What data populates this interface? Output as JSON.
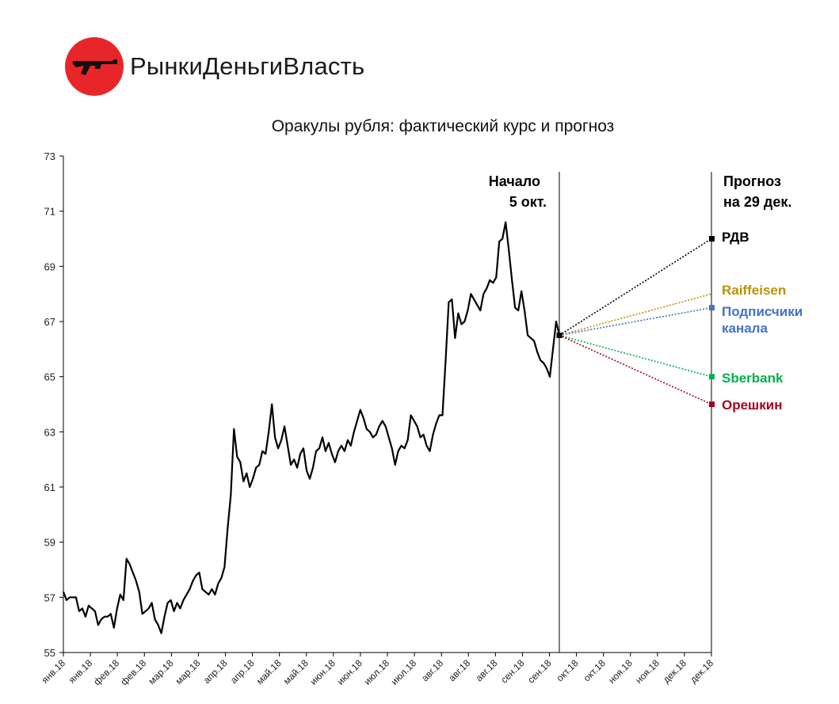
{
  "brand": {
    "name": "РынкиДеньгиВласть"
  },
  "chart_data": {
    "type": "line",
    "title": "Оракулы рубля: фактический курс и прогноз",
    "ylim": [
      55,
      73
    ],
    "y_ticks": [
      55,
      57,
      59,
      61,
      63,
      65,
      67,
      69,
      71,
      73
    ],
    "x_tick_labels": [
      "янв.18",
      "янв.18",
      "фев.18",
      "фев.18",
      "мар.18",
      "мар.18",
      "апр.18",
      "апр.18",
      "май.18",
      "май.18",
      "июн.18",
      "июн.18",
      "июл.18",
      "июл.18",
      "авг.18",
      "авг.18",
      "авг.18",
      "сен.18",
      "сен.18",
      "окт.18",
      "окт.18",
      "ноя.18",
      "ноя.18",
      "дек.18",
      "дек.18"
    ],
    "grid": false,
    "series": [
      {
        "color": "#000000",
        "values": [
          57.2,
          56.9,
          57.0,
          57.0,
          57.0,
          56.5,
          56.6,
          56.3,
          56.7,
          56.6,
          56.5,
          56.0,
          56.2,
          56.3,
          56.3,
          56.4,
          55.9,
          56.6,
          57.1,
          56.9,
          58.4,
          58.2,
          57.9,
          57.6,
          57.2,
          56.4,
          56.5,
          56.6,
          56.8,
          56.2,
          56.0,
          55.7,
          56.3,
          56.8,
          56.9,
          56.5,
          56.8,
          56.6,
          56.9,
          57.1,
          57.3,
          57.6,
          57.8,
          57.9,
          57.3,
          57.2,
          57.1,
          57.3,
          57.1,
          57.5,
          57.7,
          58.1,
          59.5,
          60.7,
          63.1,
          62.1,
          61.9,
          61.2,
          61.5,
          61.0,
          61.3,
          61.7,
          61.8,
          62.3,
          62.2,
          63.0,
          64.0,
          62.8,
          62.4,
          62.7,
          63.2,
          62.5,
          61.8,
          62.0,
          61.7,
          62.2,
          62.4,
          61.6,
          61.3,
          61.7,
          62.3,
          62.4,
          62.8,
          62.3,
          62.6,
          62.2,
          61.9,
          62.3,
          62.5,
          62.3,
          62.7,
          62.5,
          63.0,
          63.4,
          63.8,
          63.5,
          63.1,
          63.0,
          62.8,
          62.9,
          63.2,
          63.4,
          63.2,
          62.8,
          62.4,
          61.8,
          62.3,
          62.5,
          62.4,
          62.7,
          63.6,
          63.4,
          63.2,
          62.8,
          62.9,
          62.5,
          62.3,
          62.9,
          63.3,
          63.6,
          63.6,
          65.6,
          67.7,
          67.8,
          66.4,
          67.3,
          66.9,
          67.0,
          67.4,
          68.0,
          67.8,
          67.6,
          67.4,
          68.0,
          68.2,
          68.5,
          68.4,
          68.6,
          69.9,
          70.0,
          70.6,
          69.6,
          68.5,
          67.5,
          67.4,
          68.1,
          67.4,
          66.5,
          66.4,
          66.3,
          65.9,
          65.6,
          65.5,
          65.3,
          65.0,
          66.0,
          67.0,
          66.5
        ]
      }
    ],
    "annotations": {
      "start": "Начало\n5 окт.",
      "forecast": "Прогноз\nна 29 дек."
    },
    "start_value": 66.5,
    "forecasts": [
      {
        "name": "РДВ",
        "value": 70.0,
        "color": "#000000",
        "marker": true
      },
      {
        "name": "Raiffeisen",
        "value": 68.0,
        "color": "#bf9000",
        "marker": false
      },
      {
        "name": "Подписчики канала",
        "value": 67.5,
        "color": "#4472c4",
        "marker": true
      },
      {
        "name": "Sberbank",
        "value": 65.0,
        "color": "#00b050",
        "marker": true
      },
      {
        "name": "Орешкин",
        "value": 64.0,
        "color": "#a50021",
        "marker": true
      }
    ]
  }
}
